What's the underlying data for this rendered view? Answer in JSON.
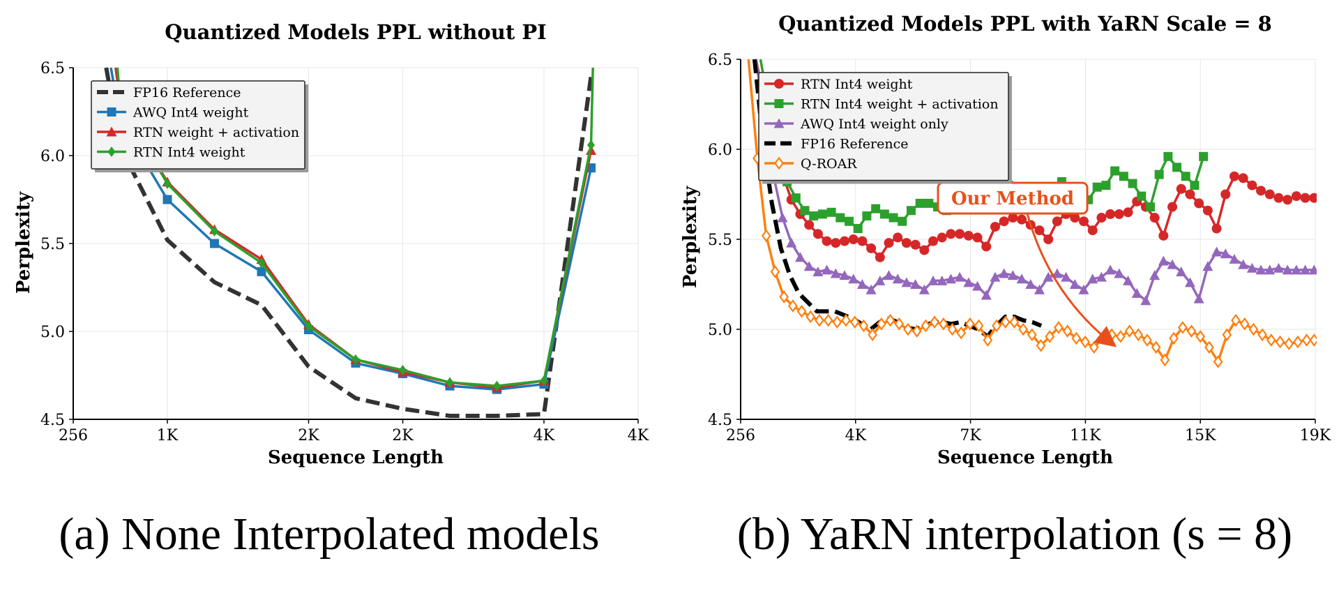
{
  "chart_data": [
    {
      "type": "line",
      "title": "Quantized Models PPL without PI",
      "xlabel": "Sequence Length",
      "ylabel": "Perplexity",
      "xlim": [
        0,
        6
      ],
      "ylim": [
        4.5,
        6.5
      ],
      "xticks": [
        {
          "pos": 0,
          "label": "256"
        },
        {
          "pos": 1,
          "label": "1K"
        },
        {
          "pos": 2.5,
          "label": "2K"
        },
        {
          "pos": 3.5,
          "label": "2K"
        },
        {
          "pos": 5,
          "label": "4K"
        },
        {
          "pos": 6,
          "label": "4K"
        }
      ],
      "yticks": [
        4.5,
        5.0,
        5.5,
        6.0,
        6.5
      ],
      "ytick_labels": [
        "4.5",
        "5.0",
        "5.5",
        "6.0",
        "6.5"
      ],
      "grid": true,
      "legend_position": "top-left",
      "series": [
        {
          "name": "FP16 Reference",
          "color": "#333333",
          "style": "dashed",
          "marker": "none",
          "x": [
            0.35,
            0.5,
            1.0,
            1.5,
            2.0,
            2.5,
            3.0,
            3.5,
            4.0,
            4.5,
            5.0,
            5.5
          ],
          "y": [
            6.5,
            6.05,
            5.52,
            5.28,
            5.15,
            4.8,
            4.62,
            4.56,
            4.52,
            4.52,
            4.53,
            6.45
          ]
        },
        {
          "name": "AWQ Int4 weight",
          "color": "#1f77b4",
          "style": "solid",
          "marker": "square",
          "x": [
            0.4,
            0.5,
            1.0,
            1.5,
            2.0,
            2.5,
            3.0,
            3.5,
            4.0,
            4.5,
            5.0,
            5.5
          ],
          "y": [
            6.5,
            6.2,
            5.75,
            5.5,
            5.34,
            5.01,
            4.82,
            4.76,
            4.69,
            4.67,
            4.7,
            5.93
          ]
        },
        {
          "name": "RTN weight + activation",
          "color": "#d62728",
          "style": "solid",
          "marker": "triangle",
          "x": [
            0.45,
            0.5,
            1.0,
            1.5,
            2.0,
            2.5,
            3.0,
            3.5,
            4.0,
            4.5,
            5.0,
            5.5
          ],
          "y": [
            6.5,
            6.3,
            5.85,
            5.58,
            5.41,
            5.04,
            4.84,
            4.77,
            4.71,
            4.68,
            4.72,
            6.03
          ]
        },
        {
          "name": "RTN Int4 weight",
          "color": "#2ca02c",
          "style": "solid",
          "marker": "diamond",
          "x": [
            0.47,
            0.5,
            1.0,
            1.5,
            2.0,
            2.5,
            3.0,
            3.5,
            4.0,
            4.5,
            5.0,
            5.5,
            5.52
          ],
          "y": [
            6.5,
            6.3,
            5.84,
            5.57,
            5.39,
            5.03,
            4.84,
            4.78,
            4.71,
            4.69,
            4.72,
            6.06,
            6.5
          ]
        }
      ],
      "caption": "(a) None Interpolated models"
    },
    {
      "type": "line",
      "title": "Quantized Models PPL with YaRN Scale = 8",
      "xlabel": "Sequence Length",
      "ylabel": "Perplexity",
      "xlim": [
        256,
        19456
      ],
      "ylim": [
        4.5,
        6.5
      ],
      "xticks": [
        {
          "pos": 256,
          "label": "256"
        },
        {
          "pos": 4096,
          "label": "4K"
        },
        {
          "pos": 7936,
          "label": "7K"
        },
        {
          "pos": 11776,
          "label": "11K"
        },
        {
          "pos": 15616,
          "label": "15K"
        },
        {
          "pos": 19456,
          "label": "19K"
        }
      ],
      "yticks": [
        4.5,
        5.0,
        5.5,
        6.0,
        6.5
      ],
      "ytick_labels": [
        "4.5",
        "5.0",
        "5.5",
        "6.0",
        "6.5"
      ],
      "grid": true,
      "legend_position": "top-left",
      "annotation": {
        "text": "Our Method",
        "color": "#e8501b",
        "points_to": [
          12800,
          4.9
        ]
      },
      "series": [
        {
          "name": "RTN Int4 weight",
          "color": "#d62728",
          "style": "solid",
          "marker": "circle",
          "x": [
            768,
            1064,
            1360,
            1656,
            1952,
            2248,
            2544,
            2840,
            3136,
            3432,
            3728,
            4024,
            4320,
            4616,
            4912,
            5208,
            5504,
            5800,
            6096,
            6392,
            6688,
            6984,
            7280,
            7576,
            7872,
            8168,
            8464,
            8760,
            9056,
            9352,
            9648,
            9944,
            10240,
            10536,
            10832,
            11128,
            11424,
            11720,
            12016,
            12312,
            12608,
            12904,
            13200,
            13496,
            13792,
            14088,
            14384,
            14680,
            14976,
            15272,
            15568,
            15864,
            16160,
            16456,
            16752,
            17048,
            17344,
            17640,
            17936,
            18232,
            18528,
            18824,
            19120,
            19416
          ],
          "y": [
            6.5,
            6.26,
            6.05,
            5.86,
            5.72,
            5.64,
            5.58,
            5.53,
            5.49,
            5.48,
            5.49,
            5.5,
            5.49,
            5.45,
            5.4,
            5.48,
            5.51,
            5.48,
            5.47,
            5.44,
            5.49,
            5.51,
            5.53,
            5.53,
            5.52,
            5.51,
            5.46,
            5.57,
            5.6,
            5.62,
            5.61,
            5.58,
            5.55,
            5.5,
            5.6,
            5.64,
            5.62,
            5.6,
            5.55,
            5.62,
            5.64,
            5.64,
            5.65,
            5.71,
            5.68,
            5.62,
            5.52,
            5.68,
            5.78,
            5.75,
            5.7,
            5.66,
            5.56,
            5.75,
            5.85,
            5.84,
            5.8,
            5.77,
            5.75,
            5.73,
            5.72,
            5.74,
            5.73,
            5.73
          ]
        },
        {
          "name": "RTN Int4 weight + activation",
          "color": "#2ca02c",
          "style": "solid",
          "marker": "square",
          "x": [
            920,
            1216,
            1512,
            1808,
            2104,
            2400,
            2696,
            2992,
            3288,
            3584,
            3880,
            4176,
            4472,
            4768,
            5064,
            5360,
            5656,
            5952,
            6248,
            6544,
            6840,
            7136,
            7432,
            7728,
            8024,
            8320,
            8616,
            8912,
            9208,
            9504,
            9800,
            10096,
            10392,
            10688,
            10984,
            11280,
            11576,
            11872,
            12168,
            12464,
            12760,
            13056,
            13352,
            13648,
            13944,
            14240,
            14536,
            14832,
            15128,
            15424,
            15720
          ],
          "y": [
            6.5,
            6.22,
            5.97,
            5.82,
            5.73,
            5.66,
            5.63,
            5.64,
            5.65,
            5.62,
            5.6,
            5.56,
            5.63,
            5.67,
            5.64,
            5.62,
            5.6,
            5.66,
            5.7,
            5.7,
            5.68,
            5.66,
            5.68,
            5.7,
            5.68,
            5.71,
            5.76,
            5.79,
            5.8,
            5.78,
            5.77,
            5.73,
            5.71,
            5.77,
            5.82,
            5.79,
            5.75,
            5.72,
            5.79,
            5.8,
            5.88,
            5.85,
            5.81,
            5.74,
            5.68,
            5.86,
            5.96,
            5.9,
            5.85,
            5.8,
            5.96
          ]
        },
        {
          "name": "AWQ Int4 weight only",
          "color": "#9467bd",
          "style": "solid",
          "marker": "triangle",
          "x": [
            768,
            1064,
            1360,
            1656,
            1952,
            2248,
            2544,
            2840,
            3136,
            3432,
            3728,
            4024,
            4320,
            4616,
            4912,
            5208,
            5504,
            5800,
            6096,
            6392,
            6688,
            6984,
            7280,
            7576,
            7872,
            8168,
            8464,
            8760,
            9056,
            9352,
            9648,
            9944,
            10240,
            10536,
            10832,
            11128,
            11424,
            11720,
            12016,
            12312,
            12608,
            12904,
            13200,
            13496,
            13792,
            14088,
            14384,
            14680,
            14976,
            15272,
            15568,
            15864,
            16160,
            16456,
            16752,
            17048,
            17344,
            17640,
            17936,
            18232,
            18528,
            18824,
            19120,
            19416
          ],
          "y": [
            6.5,
            6.15,
            5.85,
            5.62,
            5.48,
            5.4,
            5.35,
            5.32,
            5.33,
            5.31,
            5.3,
            5.28,
            5.25,
            5.22,
            5.27,
            5.3,
            5.28,
            5.26,
            5.25,
            5.22,
            5.27,
            5.27,
            5.28,
            5.29,
            5.26,
            5.24,
            5.19,
            5.29,
            5.31,
            5.3,
            5.28,
            5.25,
            5.22,
            5.29,
            5.31,
            5.29,
            5.25,
            5.22,
            5.28,
            5.29,
            5.33,
            5.31,
            5.27,
            5.2,
            5.16,
            5.3,
            5.38,
            5.36,
            5.32,
            5.26,
            5.17,
            5.35,
            5.43,
            5.42,
            5.39,
            5.36,
            5.34,
            5.33,
            5.33,
            5.34,
            5.33,
            5.33,
            5.33,
            5.33
          ]
        },
        {
          "name": "FP16 Reference",
          "color": "#000000",
          "style": "dashed",
          "marker": "none",
          "x": [
            720,
            1000,
            1300,
            1600,
            1900,
            2200,
            2500,
            2800,
            3100,
            3400,
            3700,
            4000,
            4300,
            4600,
            4900,
            5200,
            5500,
            5800,
            6100,
            6400,
            6700,
            7000,
            7300,
            7600,
            7900,
            8200,
            8500,
            8800,
            9100,
            9400,
            9700,
            10000,
            10300
          ],
          "y": [
            6.5,
            6.05,
            5.7,
            5.45,
            5.3,
            5.2,
            5.15,
            5.1,
            5.1,
            5.1,
            5.08,
            5.06,
            5.03,
            5.0,
            5.04,
            5.06,
            5.04,
            5.01,
            5.0,
            5.02,
            5.04,
            5.04,
            5.03,
            5.04,
            5.02,
            5.0,
            4.96,
            5.02,
            5.07,
            5.07,
            5.05,
            5.04,
            5.02
          ]
        },
        {
          "name": "Q-ROAR",
          "color": "#ff7f0e",
          "style": "solid",
          "marker": "diamond-open",
          "x": [
            520,
            816,
            1112,
            1408,
            1704,
            2000,
            2296,
            2592,
            2888,
            3184,
            3480,
            3776,
            4072,
            4368,
            4664,
            4960,
            5256,
            5552,
            5848,
            6144,
            6440,
            6736,
            7032,
            7328,
            7624,
            7920,
            8216,
            8512,
            8808,
            9104,
            9400,
            9696,
            9992,
            10288,
            10584,
            10880,
            11176,
            11472,
            11768,
            12064,
            12360,
            12656,
            12952,
            13248,
            13544,
            13840,
            14136,
            14432,
            14728,
            15024,
            15320,
            15616,
            15912,
            16208,
            16504,
            16800,
            17096,
            17392,
            17688,
            17984,
            18280,
            18576,
            18872,
            19168,
            19416
          ],
          "y": [
            6.5,
            5.95,
            5.52,
            5.32,
            5.18,
            5.13,
            5.1,
            5.07,
            5.05,
            5.05,
            5.04,
            5.05,
            5.04,
            5.02,
            4.97,
            5.03,
            5.05,
            5.03,
            5.0,
            4.99,
            5.02,
            5.04,
            5.03,
            5.0,
            4.98,
            5.03,
            5.02,
            4.94,
            5.02,
            5.04,
            5.04,
            5.0,
            4.97,
            4.91,
            4.96,
            5.01,
            4.99,
            4.95,
            4.93,
            4.9,
            4.95,
            4.97,
            4.96,
            4.99,
            4.97,
            4.94,
            4.9,
            4.83,
            4.95,
            5.01,
            4.99,
            4.96,
            4.9,
            4.82,
            4.97,
            5.05,
            5.03,
            5.0,
            4.97,
            4.94,
            4.93,
            4.92,
            4.93,
            4.94,
            4.94
          ]
        }
      ],
      "caption": "(b) YaRN interpolation (s = 8)"
    }
  ]
}
